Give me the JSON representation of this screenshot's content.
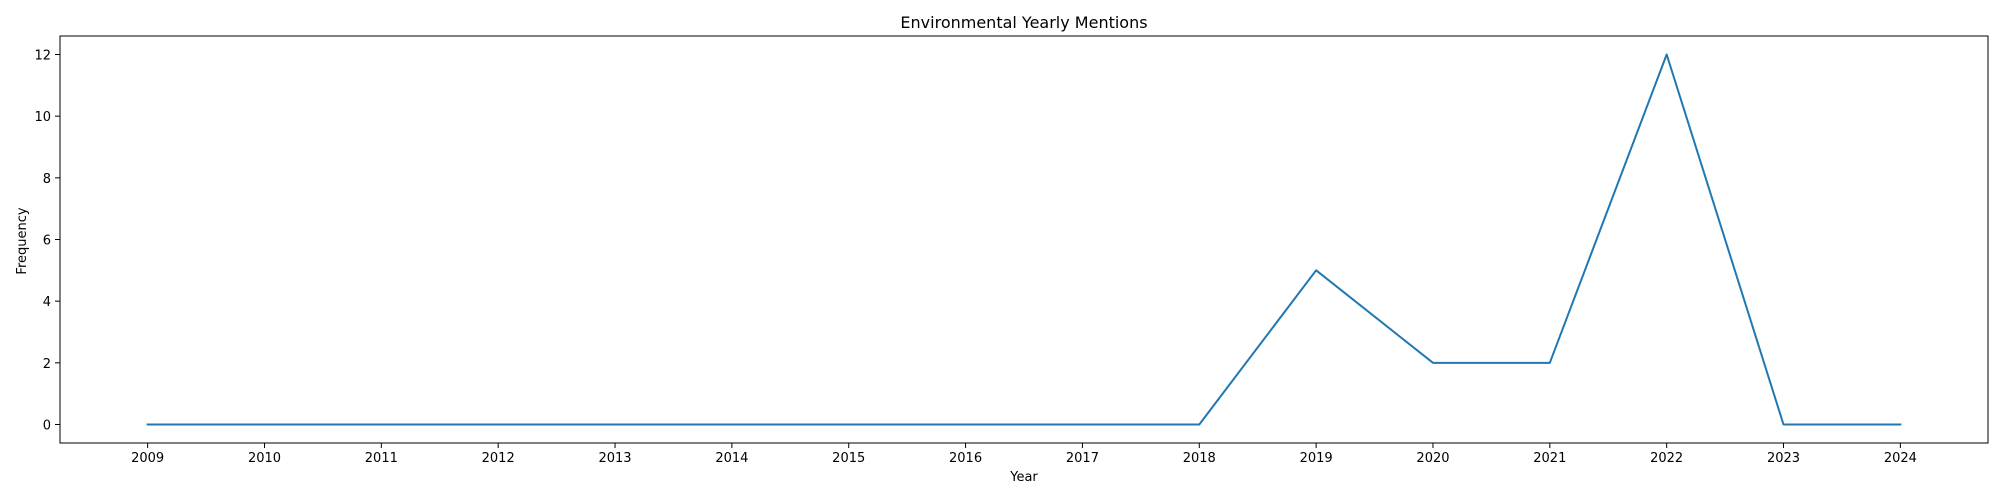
{
  "chart_data": {
    "type": "line",
    "title": "Environmental Yearly Mentions",
    "xlabel": "Year",
    "ylabel": "Frequency",
    "x": [
      "2009",
      "2010",
      "2011",
      "2012",
      "2013",
      "2014",
      "2015",
      "2016",
      "2017",
      "2018",
      "2019",
      "2020",
      "2021",
      "2022",
      "2023",
      "2024"
    ],
    "series": [
      {
        "values": [
          0,
          0,
          0,
          0,
          0,
          0,
          0,
          0,
          0,
          0,
          5,
          2,
          2,
          12,
          0,
          0
        ],
        "color": "#1f77b4"
      }
    ],
    "yticks": [
      0,
      2,
      4,
      6,
      8,
      10,
      12
    ],
    "ylim": [
      -0.6,
      12.6
    ],
    "grid": false,
    "legend": "none"
  }
}
